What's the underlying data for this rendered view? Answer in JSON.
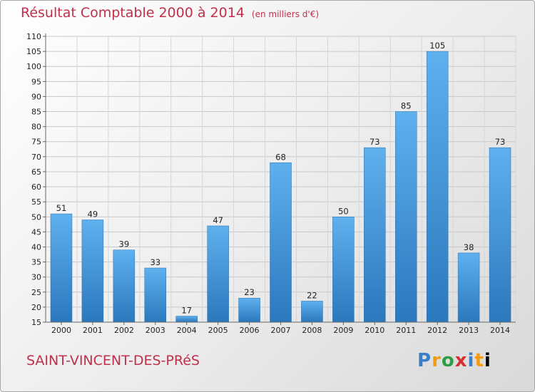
{
  "header": {
    "title": "Résultat Comptable 2000 à 2014",
    "unit": "(en milliers d'€)"
  },
  "footer": {
    "commune": "SAINT-VINCENT-DES-PRéS",
    "logo": "Proxiti"
  },
  "colors": {
    "title": "#c0304a",
    "bar_light": "#5fb0ee",
    "bar_dark": "#2b78bd"
  },
  "chart_data": {
    "type": "bar",
    "title": "Résultat Comptable 2000 à 2014",
    "categories": [
      "2000",
      "2001",
      "2002",
      "2003",
      "2004",
      "2005",
      "2006",
      "2007",
      "2008",
      "2009",
      "2010",
      "2011",
      "2012",
      "2013",
      "2014"
    ],
    "values": [
      51,
      49,
      39,
      33,
      17,
      47,
      23,
      68,
      22,
      50,
      73,
      85,
      105,
      38,
      73
    ],
    "ylim": [
      15,
      110
    ],
    "yticks": [
      15,
      20,
      25,
      30,
      35,
      40,
      45,
      50,
      55,
      60,
      65,
      70,
      75,
      80,
      85,
      90,
      95,
      100,
      105,
      110
    ],
    "grid": true,
    "legend": "none"
  }
}
